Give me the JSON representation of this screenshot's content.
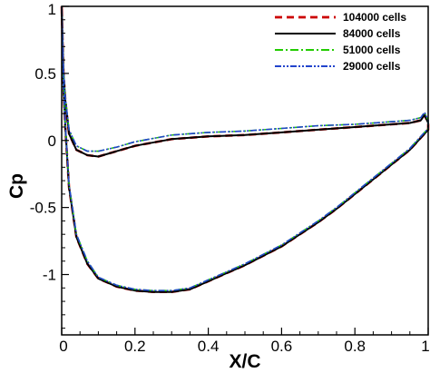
{
  "chart_data": {
    "type": "line",
    "xlabel": "X/C",
    "ylabel": "Cp",
    "xlim": [
      0,
      1
    ],
    "ylim": [
      -1.45,
      1.0
    ],
    "y_inverted": true,
    "x_ticks": [
      0,
      0.2,
      0.4,
      0.6,
      0.8,
      1
    ],
    "x_tick_labels": [
      "0",
      "0.2",
      "0.4",
      "0.6",
      "0.8",
      "1"
    ],
    "y_ticks": [
      1,
      0.5,
      0,
      -0.5,
      -1
    ],
    "y_tick_labels": [
      "1",
      "0.5",
      "0",
      "-0.5",
      "-1"
    ],
    "grid": false,
    "legend_position": "top-right",
    "series": [
      {
        "name": "104000 cells",
        "color": "#cc0000",
        "dash": "dashed",
        "x_lower": [
          0.0,
          0.005,
          0.01,
          0.02,
          0.04,
          0.07,
          0.1,
          0.15,
          0.2,
          0.25,
          0.3,
          0.35,
          0.4,
          0.45,
          0.5,
          0.55,
          0.6,
          0.65,
          0.7,
          0.75,
          0.8,
          0.85,
          0.9,
          0.95,
          0.98,
          1.0
        ],
        "cp_lower": [
          1.0,
          0.4,
          0.1,
          -0.35,
          -0.72,
          -0.92,
          -1.03,
          -1.09,
          -1.12,
          -1.13,
          -1.13,
          -1.11,
          -1.05,
          -0.99,
          -0.93,
          -0.86,
          -0.79,
          -0.7,
          -0.61,
          -0.51,
          -0.4,
          -0.29,
          -0.18,
          -0.07,
          0.02,
          0.08
        ],
        "x_upper": [
          0.0,
          0.005,
          0.01,
          0.02,
          0.04,
          0.07,
          0.1,
          0.15,
          0.2,
          0.3,
          0.4,
          0.5,
          0.6,
          0.7,
          0.8,
          0.9,
          0.95,
          0.98,
          0.99,
          1.0
        ],
        "cp_upper": [
          1.0,
          0.5,
          0.3,
          0.05,
          -0.07,
          -0.11,
          -0.12,
          -0.08,
          -0.04,
          0.01,
          0.03,
          0.04,
          0.06,
          0.08,
          0.1,
          0.12,
          0.13,
          0.15,
          0.19,
          0.13
        ]
      },
      {
        "name": "84000 cells",
        "color": "#000000",
        "dash": "solid",
        "x_lower": [
          0.0,
          0.005,
          0.01,
          0.02,
          0.04,
          0.07,
          0.1,
          0.15,
          0.2,
          0.25,
          0.3,
          0.35,
          0.4,
          0.45,
          0.5,
          0.55,
          0.6,
          0.65,
          0.7,
          0.75,
          0.8,
          0.85,
          0.9,
          0.95,
          0.98,
          1.0
        ],
        "cp_lower": [
          1.0,
          0.4,
          0.1,
          -0.35,
          -0.72,
          -0.92,
          -1.03,
          -1.09,
          -1.12,
          -1.13,
          -1.13,
          -1.11,
          -1.05,
          -0.99,
          -0.93,
          -0.86,
          -0.79,
          -0.7,
          -0.61,
          -0.51,
          -0.4,
          -0.29,
          -0.18,
          -0.07,
          0.02,
          0.08
        ],
        "x_upper": [
          0.0,
          0.005,
          0.01,
          0.02,
          0.04,
          0.07,
          0.1,
          0.15,
          0.2,
          0.3,
          0.4,
          0.5,
          0.6,
          0.7,
          0.8,
          0.9,
          0.95,
          0.98,
          0.99,
          1.0
        ],
        "cp_upper": [
          1.0,
          0.5,
          0.3,
          0.05,
          -0.07,
          -0.11,
          -0.12,
          -0.08,
          -0.04,
          0.01,
          0.03,
          0.04,
          0.06,
          0.08,
          0.1,
          0.12,
          0.13,
          0.15,
          0.19,
          0.13
        ]
      },
      {
        "name": "51000 cells",
        "color": "#22cc00",
        "dash": "dashdot",
        "x_lower": [
          0.0,
          0.005,
          0.01,
          0.02,
          0.04,
          0.07,
          0.1,
          0.15,
          0.2,
          0.25,
          0.3,
          0.35,
          0.4,
          0.45,
          0.5,
          0.55,
          0.6,
          0.65,
          0.7,
          0.75,
          0.8,
          0.85,
          0.9,
          0.95,
          0.98,
          1.0
        ],
        "cp_lower": [
          1.0,
          0.42,
          0.12,
          -0.33,
          -0.7,
          -0.9,
          -1.02,
          -1.08,
          -1.11,
          -1.12,
          -1.12,
          -1.1,
          -1.04,
          -0.98,
          -0.92,
          -0.85,
          -0.78,
          -0.69,
          -0.6,
          -0.5,
          -0.39,
          -0.28,
          -0.17,
          -0.06,
          0.03,
          0.09
        ],
        "x_upper": [
          0.0,
          0.005,
          0.01,
          0.02,
          0.04,
          0.07,
          0.1,
          0.15,
          0.2,
          0.3,
          0.4,
          0.5,
          0.6,
          0.7,
          0.8,
          0.9,
          0.95,
          0.98,
          0.99,
          1.0
        ],
        "cp_upper": [
          1.0,
          0.52,
          0.32,
          0.08,
          -0.04,
          -0.08,
          -0.08,
          -0.05,
          -0.01,
          0.04,
          0.06,
          0.07,
          0.09,
          0.11,
          0.12,
          0.14,
          0.15,
          0.17,
          0.21,
          0.15
        ]
      },
      {
        "name": "29000 cells",
        "color": "#2244cc",
        "dash": "dashdotdot",
        "x_lower": [
          0.0,
          0.005,
          0.01,
          0.02,
          0.04,
          0.07,
          0.1,
          0.15,
          0.2,
          0.25,
          0.3,
          0.35,
          0.4,
          0.45,
          0.5,
          0.55,
          0.6,
          0.65,
          0.7,
          0.75,
          0.8,
          0.85,
          0.9,
          0.95,
          0.98,
          1.0
        ],
        "cp_lower": [
          1.0,
          0.42,
          0.12,
          -0.33,
          -0.7,
          -0.9,
          -1.02,
          -1.08,
          -1.11,
          -1.12,
          -1.12,
          -1.1,
          -1.04,
          -0.98,
          -0.92,
          -0.85,
          -0.78,
          -0.69,
          -0.6,
          -0.5,
          -0.39,
          -0.28,
          -0.17,
          -0.06,
          0.03,
          0.09
        ],
        "x_upper": [
          0.0,
          0.005,
          0.01,
          0.02,
          0.04,
          0.07,
          0.1,
          0.15,
          0.2,
          0.3,
          0.4,
          0.5,
          0.6,
          0.7,
          0.8,
          0.9,
          0.95,
          0.98,
          0.99,
          1.0
        ],
        "cp_upper": [
          1.0,
          0.52,
          0.32,
          0.08,
          -0.04,
          -0.08,
          -0.08,
          -0.05,
          -0.01,
          0.04,
          0.06,
          0.07,
          0.09,
          0.11,
          0.12,
          0.14,
          0.15,
          0.17,
          0.21,
          0.15
        ]
      }
    ]
  }
}
